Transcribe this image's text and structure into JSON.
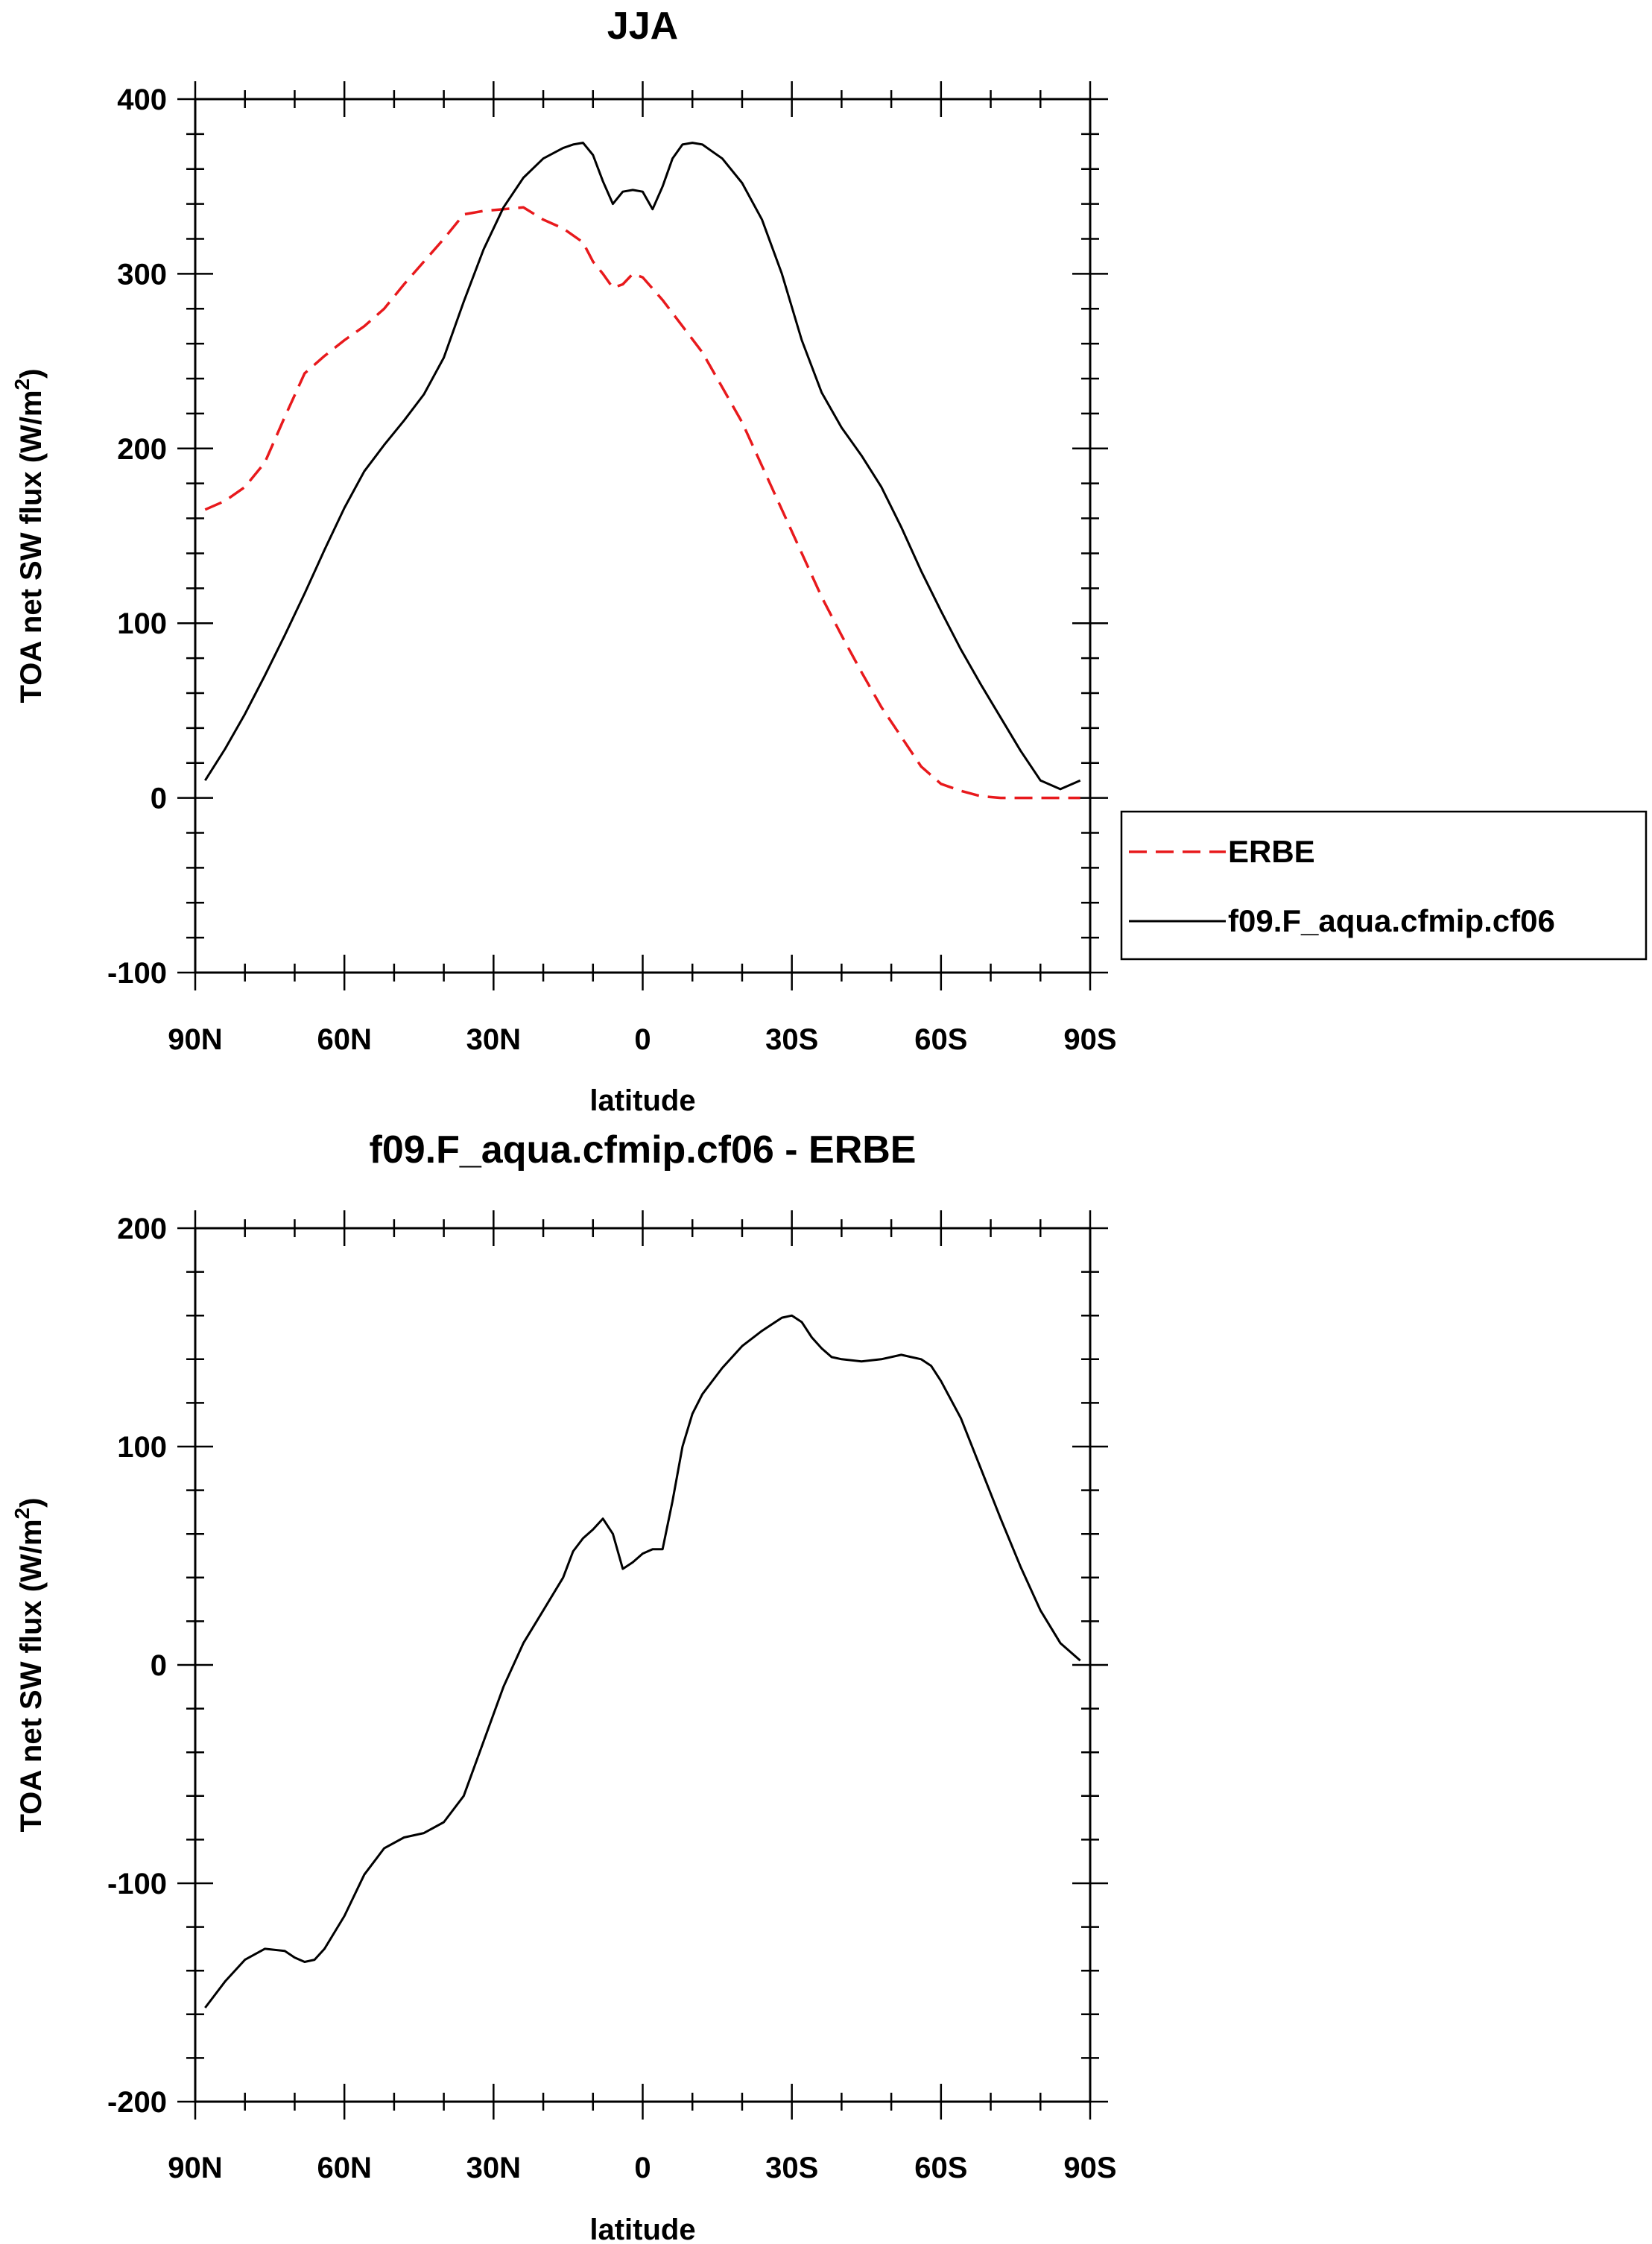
{
  "chart_data": [
    {
      "type": "line",
      "title": "JJA",
      "xlabel": "latitude",
      "ylabel": "TOA net SW flux (W/m",
      "ylabel_sup": "2",
      "ylabel_end": ")",
      "xlim": [
        90,
        -90
      ],
      "ylim": [
        -100,
        400
      ],
      "yticks": [
        -100,
        0,
        100,
        200,
        300,
        400
      ],
      "xticks": [
        {
          "v": 90,
          "label": "90N"
        },
        {
          "v": 60,
          "label": "60N"
        },
        {
          "v": 30,
          "label": "30N"
        },
        {
          "v": 0,
          "label": "0"
        },
        {
          "v": -30,
          "label": "30S"
        },
        {
          "v": -60,
          "label": "60S"
        },
        {
          "v": -90,
          "label": "90S"
        }
      ],
      "legend": "right",
      "series": [
        {
          "name": "ERBE",
          "color": "#e8191c",
          "dash": "dashed",
          "x": [
            88,
            84,
            80,
            76,
            72,
            68,
            64,
            60,
            56,
            52,
            48,
            44,
            40,
            36,
            32,
            28,
            24,
            20,
            16,
            12,
            10,
            8,
            6,
            4,
            2,
            0,
            -4,
            -8,
            -12,
            -16,
            -20,
            -24,
            -28,
            -32,
            -36,
            -40,
            -44,
            -48,
            -52,
            -56,
            -60,
            -64,
            -68,
            -72,
            -76,
            -80,
            -84,
            -88
          ],
          "y": [
            165,
            170,
            178,
            192,
            218,
            243,
            253,
            262,
            270,
            280,
            294,
            307,
            320,
            334,
            336,
            337,
            338,
            331,
            326,
            318,
            307,
            300,
            292,
            294,
            300,
            298,
            285,
            270,
            255,
            235,
            215,
            190,
            165,
            140,
            115,
            93,
            72,
            52,
            35,
            18,
            8,
            4,
            1,
            0,
            0,
            0,
            0,
            0
          ]
        },
        {
          "name": "f09.F_aqua.cfmip.cf06",
          "color": "#000000",
          "dash": "solid",
          "x": [
            88,
            84,
            80,
            76,
            72,
            68,
            64,
            60,
            56,
            52,
            48,
            44,
            40,
            36,
            32,
            28,
            24,
            20,
            16,
            14,
            12,
            10,
            8,
            6,
            4,
            2,
            0,
            -2,
            -4,
            -6,
            -8,
            -10,
            -12,
            -14,
            -16,
            -20,
            -24,
            -28,
            -32,
            -36,
            -40,
            -44,
            -48,
            -52,
            -56,
            -60,
            -64,
            -68,
            -72,
            -76,
            -80,
            -84,
            -88
          ],
          "y": [
            10,
            28,
            48,
            70,
            93,
            117,
            142,
            166,
            187,
            202,
            216,
            231,
            252,
            284,
            314,
            338,
            355,
            366,
            372,
            374,
            375,
            368,
            353,
            340,
            347,
            348,
            347,
            337,
            350,
            366,
            374,
            375,
            374,
            370,
            366,
            352,
            331,
            300,
            262,
            232,
            212,
            196,
            178,
            155,
            130,
            107,
            85,
            65,
            46,
            27,
            10,
            5,
            10
          ]
        }
      ]
    },
    {
      "type": "line",
      "title": "f09.F_aqua.cfmip.cf06 - ERBE",
      "xlabel": "latitude",
      "ylabel": "TOA net SW flux (W/m",
      "ylabel_sup": "2",
      "ylabel_end": ")",
      "xlim": [
        90,
        -90
      ],
      "ylim": [
        -200,
        200
      ],
      "yticks": [
        -200,
        -100,
        0,
        100,
        200
      ],
      "xticks": [
        {
          "v": 90,
          "label": "90N"
        },
        {
          "v": 60,
          "label": "60N"
        },
        {
          "v": 30,
          "label": "30N"
        },
        {
          "v": 0,
          "label": "0"
        },
        {
          "v": -30,
          "label": "30S"
        },
        {
          "v": -60,
          "label": "60S"
        },
        {
          "v": -90,
          "label": "90S"
        }
      ],
      "series": [
        {
          "name": "f09.F_aqua.cfmip.cf06 - ERBE",
          "color": "#000000",
          "dash": "solid",
          "x": [
            88,
            84,
            80,
            76,
            72,
            70,
            68,
            66,
            64,
            60,
            56,
            52,
            48,
            44,
            40,
            36,
            32,
            28,
            24,
            20,
            16,
            14,
            12,
            10,
            8,
            6,
            4,
            2,
            0,
            -2,
            -4,
            -6,
            -8,
            -10,
            -12,
            -14,
            -16,
            -20,
            -24,
            -28,
            -30,
            -32,
            -34,
            -36,
            -38,
            -40,
            -44,
            -48,
            -52,
            -54,
            -56,
            -58,
            -60,
            -64,
            -68,
            -72,
            -76,
            -80,
            -84,
            -88
          ],
          "y": [
            -157,
            -145,
            -135,
            -130,
            -131,
            -134,
            -136,
            -135,
            -130,
            -115,
            -96,
            -84,
            -79,
            -77,
            -72,
            -60,
            -35,
            -10,
            10,
            25,
            40,
            52,
            58,
            62,
            67,
            60,
            44,
            47,
            51,
            53,
            53,
            75,
            100,
            115,
            124,
            130,
            136,
            146,
            153,
            159,
            160,
            157,
            150,
            145,
            141,
            140,
            139,
            140,
            142,
            141,
            140,
            137,
            130,
            113,
            90,
            67,
            45,
            25,
            10,
            2
          ]
        }
      ]
    }
  ]
}
